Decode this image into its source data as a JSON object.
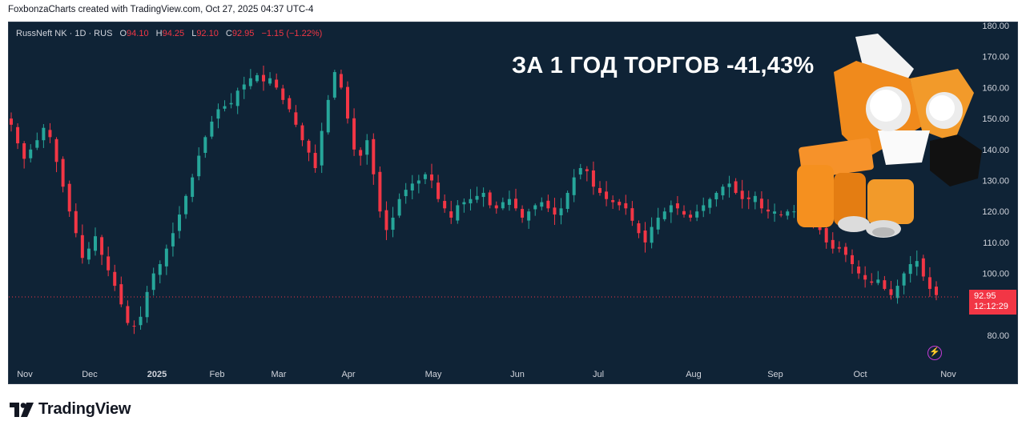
{
  "header": {
    "attribution": "FoxbonzaCharts created with TradingView.com, Oct 27, 2025 04:37 UTC-4"
  },
  "legend": {
    "symbol": "RussNeft NK · 1D · RUS",
    "o_label": "O",
    "o_value": "94.10",
    "h_label": "H",
    "h_value": "94.25",
    "l_label": "L",
    "l_value": "92.10",
    "c_label": "C",
    "c_value": "92.95",
    "change": "−1.15 (−1.22%)"
  },
  "headline": "ЗА 1 ГОД ТОРГОВ -41,43%",
  "price_tag": {
    "price": "92.95",
    "countdown": "12:12:29"
  },
  "brand": {
    "name": "TradingView"
  },
  "colors": {
    "up": "#26a69a",
    "down": "#f23645",
    "background": "#0f2336",
    "price_line": "#f23645"
  },
  "icons": [
    "lightning-bolt-icon",
    "tradingview-logo-icon",
    "lego-rocket-image"
  ],
  "chart_data": {
    "type": "candlestick",
    "symbol": "RussNeft NK",
    "interval": "1D",
    "y_ticks": [
      "180.00",
      "170.00",
      "160.00",
      "150.00",
      "140.00",
      "130.00",
      "120.00",
      "110.00",
      "100.00",
      "80.00"
    ],
    "y_tick_values": [
      180,
      170,
      160,
      150,
      140,
      130,
      120,
      110,
      100,
      80
    ],
    "ylim": [
      73,
      183
    ],
    "x_ticks": [
      "Nov",
      "Dec",
      "2025",
      "Feb",
      "Mar",
      "Apr",
      "May",
      "Jun",
      "Jul",
      "Aug",
      "Sep",
      "Oct",
      "Nov"
    ],
    "last_price": 92.95,
    "series": [
      {
        "name": "close_path",
        "values": [
          148,
          142,
          137,
          140,
          143,
          147,
          144,
          136,
          128,
          120,
          113,
          105,
          108,
          112,
          106,
          101,
          96,
          90,
          84,
          83,
          86,
          94,
          100,
          103,
          108,
          113,
          119,
          125,
          131,
          138,
          144,
          149,
          153,
          154,
          155,
          159,
          161,
          163,
          164,
          162,
          163,
          160,
          156,
          153,
          148,
          143,
          139,
          134,
          146,
          156,
          165,
          160,
          150,
          140,
          138,
          143,
          132,
          120,
          114,
          118,
          124,
          127,
          129,
          130,
          132,
          130,
          124,
          121,
          118,
          122,
          123,
          124,
          125,
          126,
          122,
          121,
          123,
          124,
          121,
          118,
          120,
          122,
          123,
          121,
          119,
          121,
          126,
          131,
          134,
          133,
          128,
          126,
          124,
          123,
          122,
          121,
          117,
          113,
          110,
          115,
          118,
          120,
          122,
          121,
          119,
          118,
          120,
          122,
          124,
          126,
          128,
          129,
          126,
          124,
          124,
          125,
          121,
          120,
          120,
          119,
          120,
          120,
          118,
          117,
          116,
          114,
          110,
          108,
          108,
          106,
          103,
          100,
          98,
          97,
          98,
          95,
          93,
          96,
          100,
          103,
          104,
          99,
          95,
          93
        ]
      }
    ]
  }
}
